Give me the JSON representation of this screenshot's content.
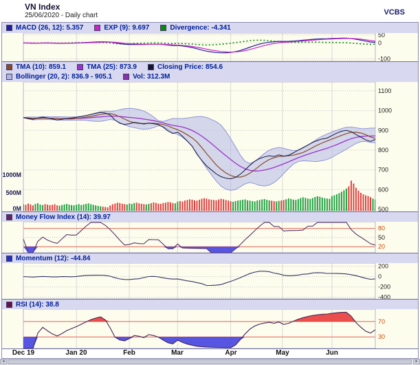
{
  "header": {
    "title": "VN Index",
    "subtitle": "25/06/2020 - Daily chart",
    "brand": "VCBS"
  },
  "panels": {
    "macd": {
      "items": [
        {
          "label": "MACD (26, 12): 5.357",
          "color": "#2020a0"
        },
        {
          "label": "EXP (9): 9.697",
          "color": "#cc22cc"
        },
        {
          "label": "Divergence: -4.341",
          "color": "#0a8a0a"
        }
      ]
    },
    "price": {
      "row1": [
        {
          "label": "TMA (10): 859.1",
          "color": "#8a4a2a"
        },
        {
          "label": "TMA (25): 873.9",
          "color": "#9933cc"
        },
        {
          "label": "Closing Price: 854.6",
          "color": "#14143c"
        }
      ],
      "row2": [
        {
          "label": "Bollinger (20, 2): 836.9 - 905.1",
          "color": "#b0b4e6"
        },
        {
          "label": "Vol: 312.3M",
          "color": "#8833aa"
        }
      ]
    },
    "mfi": {
      "items": [
        {
          "label": "Money Flow Index (14): 39.97",
          "color": "#662266"
        }
      ]
    },
    "momentum": {
      "items": [
        {
          "label": "Momentum (12): -44.84",
          "color": "#2233bb"
        }
      ]
    },
    "rsi": {
      "items": [
        {
          "label": "RSI (14): 38.8",
          "color": "#661144"
        }
      ]
    }
  },
  "colors": {
    "macd_line": "#2020a0",
    "exp_line": "#cc22cc",
    "divergence": "#0a8a0a",
    "tma10": "#8a4a2a",
    "tma25": "#9933cc",
    "close_line": "#14143c",
    "bollinger_fill": "#b9bce8",
    "bollinger_edge": "#9096d8",
    "vol_up": "#22a042",
    "vol_down": "#e04040",
    "mfi_line": "#553366",
    "momentum_line": "#333366",
    "rsi_line": "#442255",
    "threshold": "#e06050",
    "tick_red": "#cc4a00",
    "rsi_fill_high": "#e83030",
    "rsi_fill_low": "#3838e0",
    "panel_bg": "#fdfdee"
  },
  "chart_data": {
    "type": "line",
    "title": "VN Index",
    "subtitle": "25/06/2020 - Daily chart",
    "x_ticks": {
      "labels": [
        "Dec 19",
        "Jan 20",
        "Feb",
        "Mar",
        "Apr",
        "May",
        "Jun"
      ],
      "fractions": [
        0,
        0.151,
        0.301,
        0.438,
        0.589,
        0.736,
        0.877
      ]
    },
    "close": [
      965,
      960,
      956,
      962,
      967,
      963,
      958,
      953,
      956,
      960,
      963,
      966,
      970,
      975,
      981,
      986,
      991,
      988,
      978,
      952,
      936,
      930,
      934,
      940,
      937,
      932,
      937,
      934,
      929,
      916,
      897,
      884,
      891,
      870,
      846,
      820,
      780,
      748,
      720,
      700,
      680,
      666,
      658,
      655,
      662,
      678,
      700,
      724,
      744,
      758,
      766,
      771,
      768,
      776,
      769,
      774,
      786,
      800,
      813,
      826,
      839,
      849,
      857,
      861,
      874,
      886,
      896,
      900,
      893,
      879,
      866,
      852,
      844,
      854.6
    ],
    "volume_m": [
      180,
      165,
      200,
      175,
      150,
      190,
      210,
      170,
      160,
      185,
      170,
      155,
      165,
      180,
      150,
      140,
      160,
      175,
      190,
      170,
      160,
      150,
      170,
      185,
      160,
      175,
      190,
      205,
      180,
      165,
      150,
      135,
      125,
      115,
      105,
      95,
      145,
      180,
      200,
      225,
      215,
      195,
      185,
      175,
      200,
      190,
      215,
      225,
      205,
      195,
      185,
      175,
      190,
      210,
      230,
      220,
      200,
      195,
      215,
      225,
      245,
      235,
      215,
      205,
      255,
      270,
      260,
      285,
      300,
      320,
      310,
      290,
      280,
      305,
      335,
      350,
      340,
      320,
      310,
      300,
      290,
      315,
      335,
      320,
      300,
      285,
      265,
      250,
      270,
      285,
      295,
      305,
      315,
      290,
      280,
      270,
      260,
      285,
      300,
      315,
      325,
      305,
      290,
      280,
      270,
      260,
      275,
      285,
      300,
      320,
      345,
      330,
      310,
      300,
      325,
      355,
      375,
      360,
      340,
      330,
      355,
      385,
      405,
      390,
      370,
      350,
      340,
      335,
      410,
      430,
      460,
      490,
      530,
      570,
      620,
      680,
      840,
      760,
      640,
      560,
      500,
      460,
      430,
      410,
      380,
      340,
      312
    ],
    "indicators": {
      "macd": {
        "slow": 26,
        "fast": 12,
        "value": 5.357,
        "signal_period": 9,
        "signal_value": 9.697,
        "divergence": -4.341,
        "yticks": [
          50,
          0,
          -100
        ]
      },
      "price": {
        "tma10": 859.1,
        "tma25": 873.9,
        "closing_price": 854.6,
        "bollinger_low": 836.9,
        "bollinger_high": 905.1,
        "volume_label": "312.3M",
        "yticks": [
          1100,
          1000,
          900,
          800,
          700,
          600,
          500
        ],
        "vol_yticks": [
          "1000M",
          "500M",
          "0M"
        ]
      },
      "mfi": {
        "period": 14,
        "value": 39.97,
        "yticks": [
          80,
          50,
          20
        ],
        "thresholds": [
          80,
          20
        ]
      },
      "momentum": {
        "period": 12,
        "value": -44.84,
        "yticks": [
          200,
          0,
          -200,
          -400
        ]
      },
      "rsi": {
        "period": 14,
        "value": 38.8,
        "yticks": [
          70,
          30
        ],
        "thresholds": [
          70,
          30
        ]
      }
    }
  }
}
